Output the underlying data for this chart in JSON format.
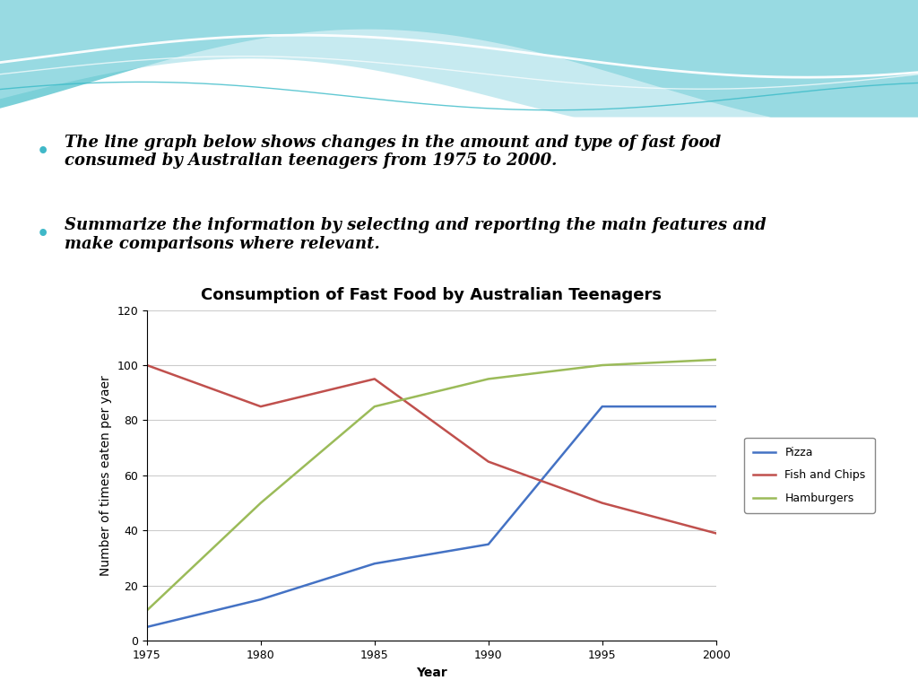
{
  "title": "Consumption of Fast Food by Australian Teenagers",
  "xlabel": "Year",
  "ylabel": "Number of times eaten per yaer",
  "years": [
    1975,
    1980,
    1985,
    1990,
    1995,
    2000
  ],
  "pizza": [
    5,
    15,
    28,
    35,
    85,
    85
  ],
  "fish_and_chips": [
    100,
    85,
    95,
    65,
    50,
    39
  ],
  "hamburgers": [
    11,
    50,
    85,
    95,
    100,
    102
  ],
  "pizza_color": "#4472C4",
  "fish_color": "#C0504D",
  "hamburger_color": "#9BBB59",
  "ylim": [
    0,
    120
  ],
  "yticks": [
    0,
    20,
    40,
    60,
    80,
    100,
    120
  ],
  "background_color": "#FFFFFF",
  "legend_labels": [
    "Pizza",
    "Fish and Chips",
    "Hamburgers"
  ],
  "title_fontsize": 13,
  "axis_label_fontsize": 10,
  "tick_fontsize": 9,
  "legend_fontsize": 9,
  "bullet_fontsize": 13
}
